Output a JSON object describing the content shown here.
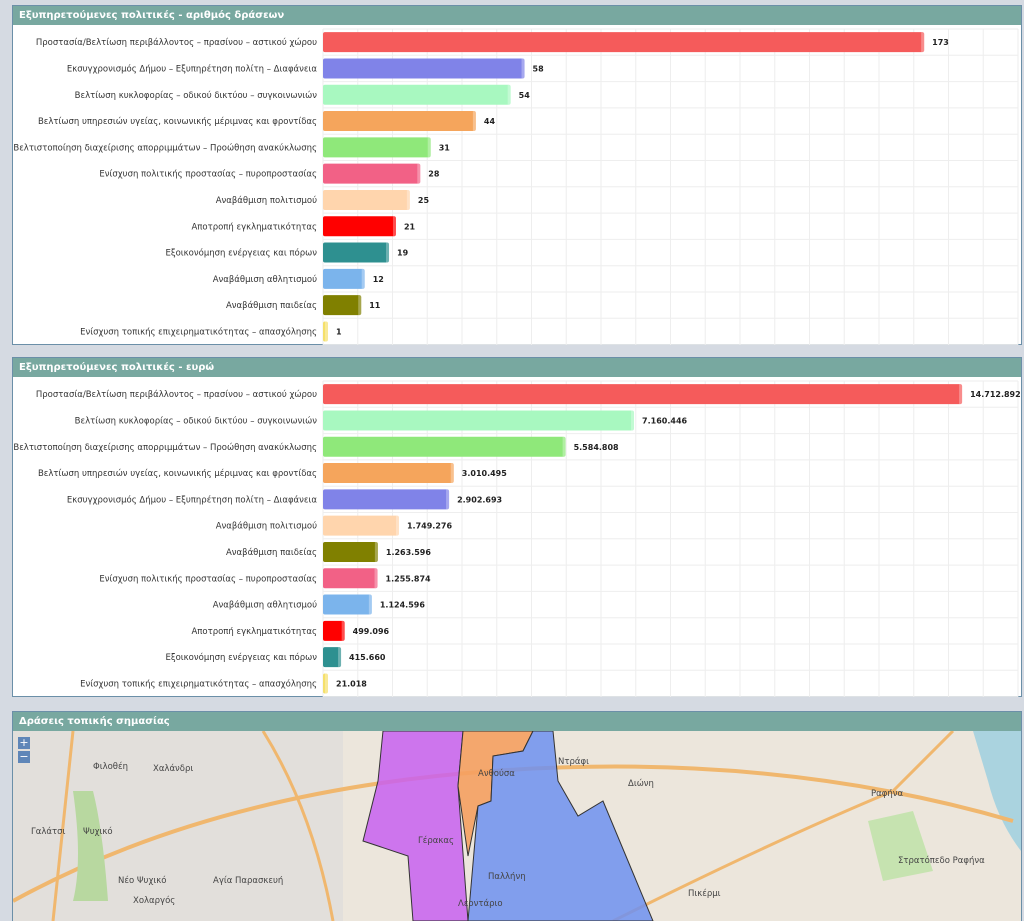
{
  "chart_data": [
    {
      "type": "bar",
      "orientation": "horizontal",
      "title": "Εξυπηρετούμενες πολιτικές - αριθμός δράσεων",
      "categories": [
        "Προστασία/Βελτίωση περιβάλλοντος – πρασίνου – αστικού χώρου",
        "Εκσυγχρονισμός Δήμου – Εξυπηρέτηση πολίτη – Διαφάνεια",
        "Βελτίωση κυκλοφορίας – οδικού δικτύου – συγκοινωνιών",
        "Βελτίωση υπηρεσιών υγείας, κοινωνικής μέριμνας και φροντίδας",
        "Βελτιστοποίηση διαχείρισης απορριμμάτων – Προώθηση ανακύκλωσης",
        "Ενίσχυση πολιτικής προστασίας – πυροπροστασίας",
        "Αναβάθμιση πολιτισμού",
        "Αποτροπή εγκληματικότητας",
        "Εξοικονόμηση ενέργειας και πόρων",
        "Αναβάθμιση αθλητισμού",
        "Αναβάθμιση παιδείας",
        "Ενίσχυση τοπικής επιχειρηματικότητας – απασχόλησης"
      ],
      "values": [
        173,
        58,
        54,
        44,
        31,
        28,
        25,
        21,
        19,
        12,
        11,
        1
      ],
      "labels": [
        "173",
        "58",
        "54",
        "44",
        "31",
        "28",
        "25",
        "21",
        "19",
        "12",
        "11",
        "1"
      ],
      "colors": [
        "#f55b5b",
        "#8083e8",
        "#a8f8c0",
        "#f5a55c",
        "#8fe87a",
        "#f26186",
        "#ffd5ad",
        "#ff0000",
        "#2e9090",
        "#7bb4ec",
        "#808000",
        "#f5e06a"
      ],
      "xlim": [
        0,
        200
      ],
      "grid": true
    },
    {
      "type": "bar",
      "orientation": "horizontal",
      "title": "Εξυπηρετούμενες πολιτικές - ευρώ",
      "categories": [
        "Προστασία/Βελτίωση περιβάλλοντος – πρασίνου – αστικού χώρου",
        "Βελτίωση κυκλοφορίας – οδικού δικτύου – συγκοινωνιών",
        "Βελτιστοποίηση διαχείρισης απορριμμάτων – Προώθηση ανακύκλωσης",
        "Βελτίωση υπηρεσιών υγείας, κοινωνικής μέριμνας και φροντίδας",
        "Εκσυγχρονισμός Δήμου – Εξυπηρέτηση πολίτη – Διαφάνεια",
        "Αναβάθμιση πολιτισμού",
        "Αναβάθμιση παιδείας",
        "Ενίσχυση πολιτικής προστασίας – πυροπροστασίας",
        "Αναβάθμιση αθλητισμού",
        "Αποτροπή εγκληματικότητας",
        "Εξοικονόμηση ενέργειας και πόρων",
        "Ενίσχυση τοπικής επιχειρηματικότητας – απασχόλησης"
      ],
      "values": [
        14712892,
        7160446,
        5584808,
        3010495,
        2902693,
        1749276,
        1263596,
        1255874,
        1124596,
        499096,
        415660,
        21018
      ],
      "labels": [
        "14.712.892",
        "7.160.446",
        "5.584.808",
        "3.010.495",
        "2.902.693",
        "1.749.276",
        "1.263.596",
        "1.255.874",
        "1.124.596",
        "499.096",
        "415.660",
        "21.018"
      ],
      "colors": [
        "#f55b5b",
        "#a8f8c0",
        "#8fe87a",
        "#f5a55c",
        "#8083e8",
        "#ffd5ad",
        "#808000",
        "#f26186",
        "#7bb4ec",
        "#ff0000",
        "#2e9090",
        "#f5e06a"
      ],
      "xlim": [
        0,
        16000000
      ],
      "grid": true
    }
  ],
  "map": {
    "title": "Δράσεις τοπικής σημασίας",
    "zoom_in": "+",
    "zoom_out": "−",
    "places": [
      "Χαλάνδρι",
      "Φιλοθέη",
      "Γαλάτσι",
      "Ψυχικό",
      "Νέο Ψυχικό",
      "Χολαργός",
      "Αγία Παρασκευή",
      "Γέρακας",
      "Ανθούσα",
      "Ντράφι",
      "Διώνη",
      "Ραφήνα",
      "Παλλήνη",
      "Λεοντάριο",
      "Πικέρμι",
      "Στρατόπεδο Ραφήνα"
    ]
  }
}
